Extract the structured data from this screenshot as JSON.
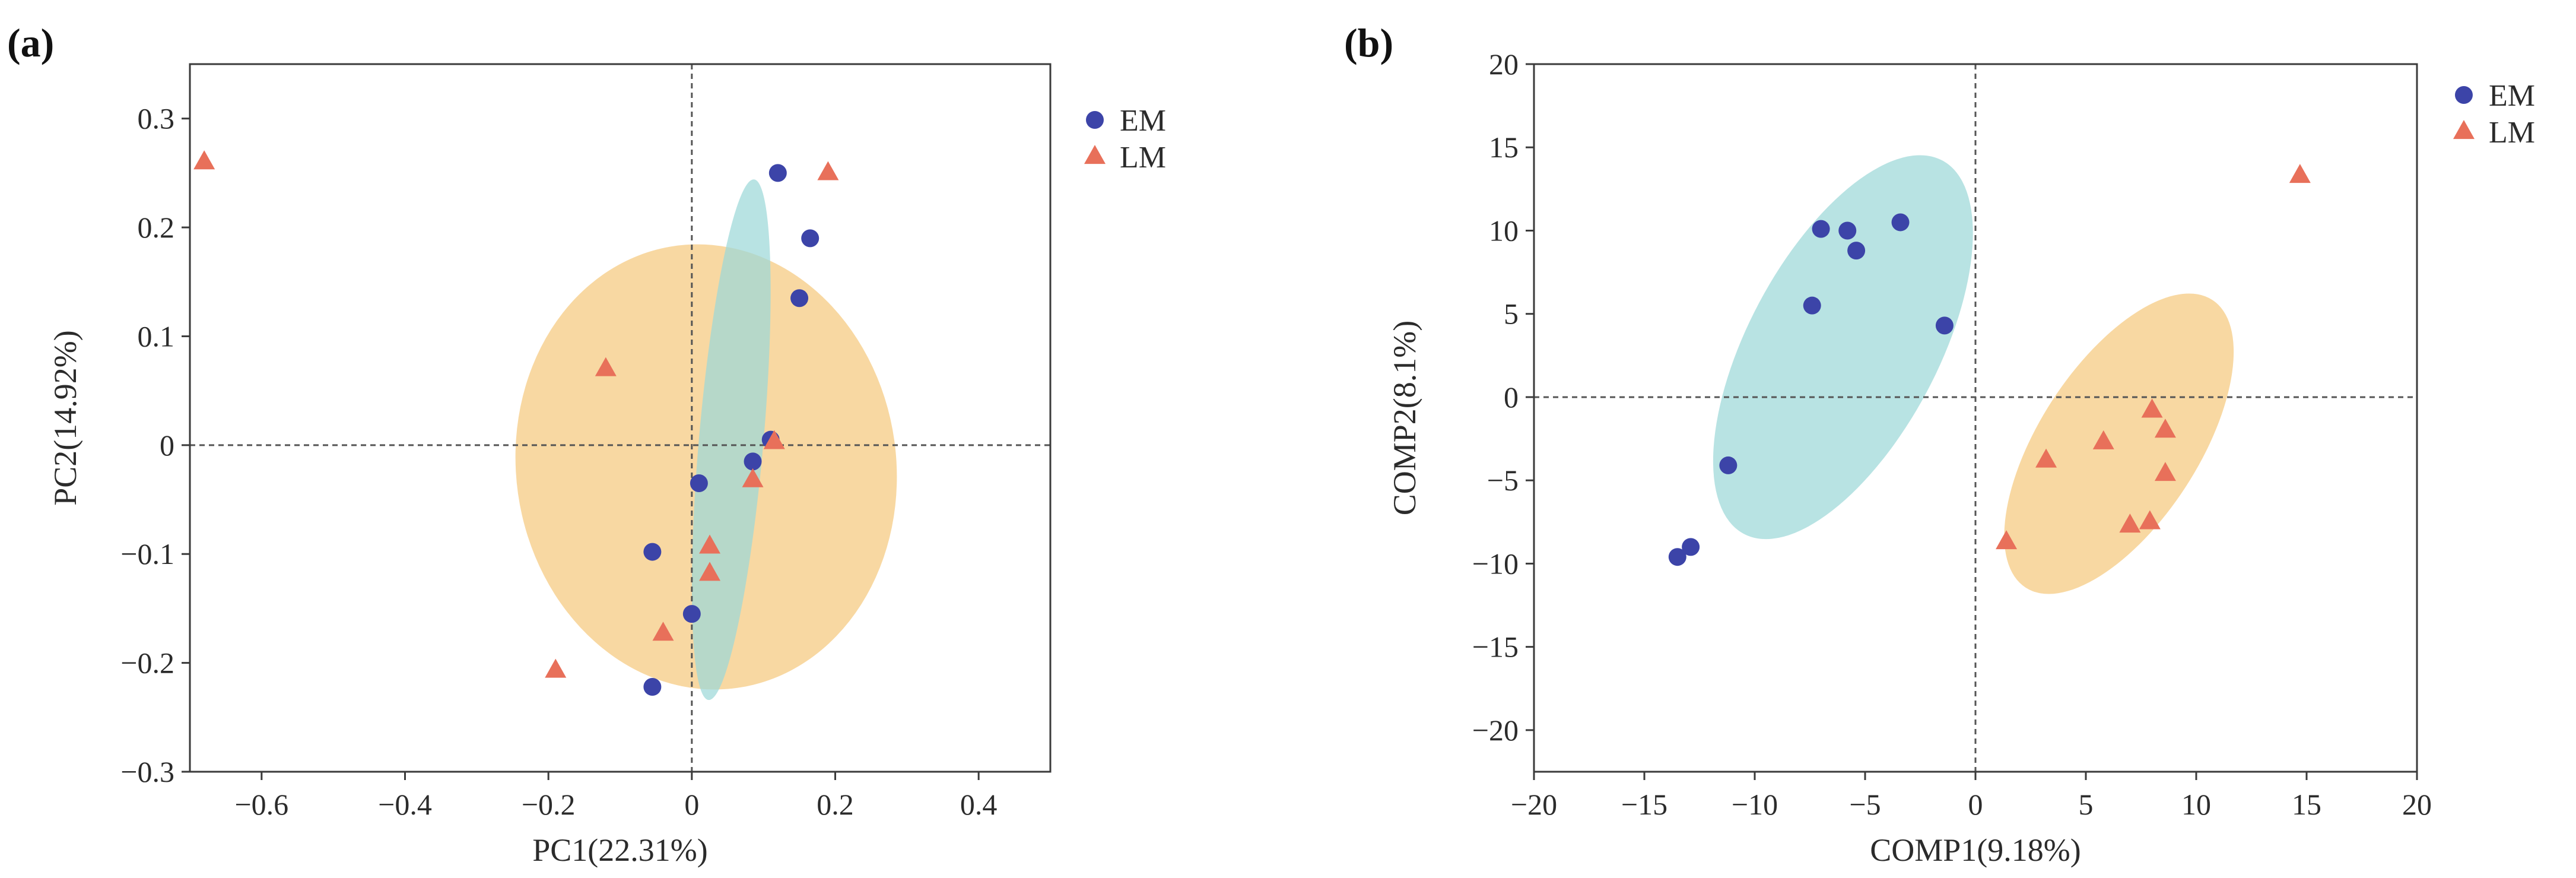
{
  "chart_data": [
    {
      "panel_label": "(a)",
      "type": "scatter",
      "xlabel": "PC1(22.31%)",
      "ylabel": "PC2(14.92%)",
      "xlim": [
        -0.7,
        0.5
      ],
      "ylim": [
        -0.3,
        0.35
      ],
      "xticks": [
        -0.6,
        -0.4,
        -0.2,
        0,
        0.2,
        0.4
      ],
      "xtick_labels": [
        "−0.6",
        "−0.4",
        "−0.2",
        "0",
        "0.2",
        "0.4"
      ],
      "yticks": [
        -0.3,
        -0.2,
        -0.1,
        0,
        0.1,
        0.2,
        0.3
      ],
      "ytick_labels": [
        "−0.3",
        "−0.2",
        "−0.1",
        "0",
        "0.1",
        "0.2",
        "0.3"
      ],
      "reference_lines": {
        "x": 0,
        "y": 0
      },
      "legend": [
        "EM",
        "LM"
      ],
      "legend_position": "outside-top-right",
      "series": [
        {
          "name": "EM",
          "marker": "circle",
          "color": "#3c44a8",
          "points": [
            [
              0.12,
              0.25
            ],
            [
              0.165,
              0.19
            ],
            [
              0.15,
              0.135
            ],
            [
              0.11,
              0.005
            ],
            [
              0.085,
              -0.015
            ],
            [
              0.01,
              -0.035
            ],
            [
              -0.055,
              -0.098
            ],
            [
              0.0,
              -0.155
            ],
            [
              -0.055,
              -0.222
            ]
          ]
        },
        {
          "name": "LM",
          "marker": "triangle",
          "color": "#e8705a",
          "points": [
            [
              -0.68,
              0.26
            ],
            [
              0.19,
              0.25
            ],
            [
              -0.12,
              0.07
            ],
            [
              0.115,
              0.003
            ],
            [
              0.085,
              -0.032
            ],
            [
              0.025,
              -0.093
            ],
            [
              0.025,
              -0.118
            ],
            [
              -0.04,
              -0.173
            ],
            [
              -0.19,
              -0.207
            ]
          ]
        }
      ],
      "ellipses": [
        {
          "group": "LM",
          "color": "#f5c97e",
          "center": [
            0.02,
            -0.02
          ],
          "semi_axes": [
            0.265,
            0.205
          ],
          "angle_deg": -8
        },
        {
          "group": "EM",
          "color": "#9cd8d8",
          "center": [
            0.055,
            0.005
          ],
          "semi_axes": [
            0.045,
            0.24
          ],
          "angle_deg": 5
        }
      ]
    },
    {
      "panel_label": "(b)",
      "type": "scatter",
      "xlabel": "COMP1(9.18%)",
      "ylabel": "COMP2(8.1%)",
      "xlim": [
        -20,
        20
      ],
      "ylim": [
        -22.5,
        20
      ],
      "xticks": [
        -20,
        -15,
        -10,
        -5,
        0,
        5,
        10,
        15,
        20
      ],
      "xtick_labels": [
        "−20",
        "−15",
        "−10",
        "−5",
        "0",
        "5",
        "10",
        "15",
        "20"
      ],
      "yticks": [
        -20,
        -15,
        -10,
        -5,
        0,
        5,
        10,
        15,
        20
      ],
      "ytick_labels": [
        "−20",
        "−15",
        "−10",
        "−5",
        "0",
        "5",
        "10",
        "15",
        "20"
      ],
      "reference_lines": {
        "x": 0,
        "y": 0
      },
      "legend": [
        "EM",
        "LM"
      ],
      "legend_position": "outside-top-right",
      "series": [
        {
          "name": "EM",
          "marker": "circle",
          "color": "#3c44a8",
          "points": [
            [
              -7.0,
              10.1
            ],
            [
              -5.8,
              10.0
            ],
            [
              -5.4,
              8.8
            ],
            [
              -3.4,
              10.5
            ],
            [
              -7.4,
              5.5
            ],
            [
              -1.4,
              4.3
            ],
            [
              -11.2,
              -4.1
            ],
            [
              -12.9,
              -9.0
            ],
            [
              -13.5,
              -9.6
            ]
          ]
        },
        {
          "name": "LM",
          "marker": "triangle",
          "color": "#e8705a",
          "points": [
            [
              14.7,
              13.3
            ],
            [
              8.0,
              -0.8
            ],
            [
              8.6,
              -2.0
            ],
            [
              5.8,
              -2.7
            ],
            [
              3.2,
              -3.8
            ],
            [
              8.6,
              -4.6
            ],
            [
              7.0,
              -7.7
            ],
            [
              7.9,
              -7.5
            ],
            [
              1.4,
              -8.7
            ]
          ]
        }
      ],
      "ellipses": [
        {
          "group": "EM",
          "color": "#9cd8d8",
          "center": [
            -6.0,
            3.0
          ],
          "semi_axes": [
            4.3,
            12.7
          ],
          "angle_deg": 28
        },
        {
          "group": "LM",
          "color": "#f5c97e",
          "center": [
            6.5,
            -2.8
          ],
          "semi_axes": [
            3.6,
            10.3
          ],
          "angle_deg": 33
        }
      ]
    }
  ]
}
